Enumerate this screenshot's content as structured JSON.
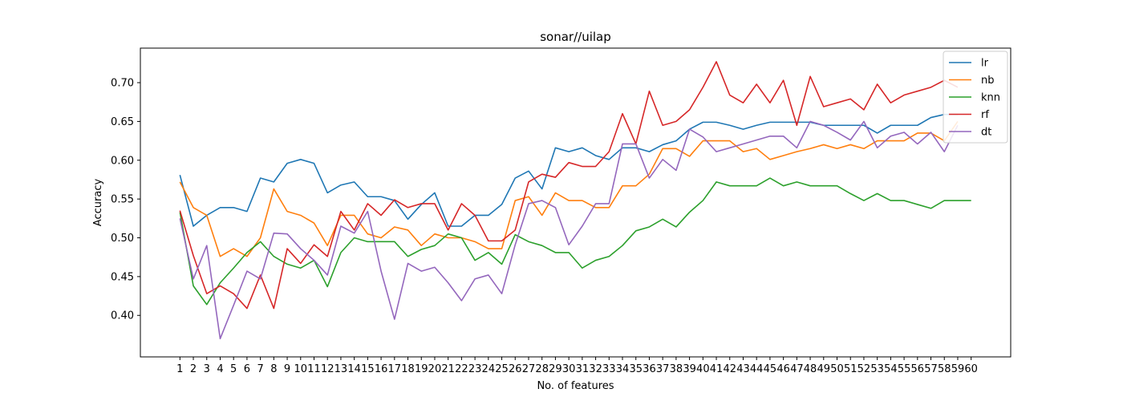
{
  "chart_data": {
    "type": "line",
    "title": "sonar//uilap",
    "xlabel": "No. of features",
    "ylabel": "Accuracy",
    "xlim": [
      -1.95,
      62.95
    ],
    "ylim": [
      0.3465,
      0.7445
    ],
    "yticks": [
      0.4,
      0.45,
      0.5,
      0.55,
      0.6,
      0.65,
      0.7
    ],
    "ytick_labels": [
      "0.40",
      "0.45",
      "0.50",
      "0.55",
      "0.60",
      "0.65",
      "0.70"
    ],
    "categories": [
      "1",
      "2",
      "3",
      "4",
      "5",
      "6",
      "7",
      "8",
      "9",
      "10",
      "11",
      "12",
      "13",
      "14",
      "15",
      "16",
      "17",
      "18",
      "19",
      "20",
      "21",
      "22",
      "23",
      "24",
      "25",
      "26",
      "27",
      "28",
      "29",
      "30",
      "31",
      "32",
      "33",
      "34",
      "35",
      "36",
      "37",
      "38",
      "39",
      "40",
      "41",
      "42",
      "43",
      "44",
      "45",
      "46",
      "47",
      "48",
      "49",
      "50",
      "51",
      "52",
      "53",
      "54",
      "55",
      "56",
      "57",
      "58",
      "59",
      "60"
    ],
    "legend_position": "top-right",
    "grid": false,
    "series": [
      {
        "name": "lr",
        "color": "#1f77b4",
        "values": [
          0.581,
          0.515,
          0.529,
          0.539,
          0.539,
          0.534,
          0.577,
          0.572,
          0.596,
          0.601,
          0.596,
          0.558,
          0.568,
          0.572,
          0.553,
          0.553,
          0.548,
          0.524,
          0.543,
          0.558,
          0.515,
          0.515,
          0.529,
          0.529,
          0.543,
          0.577,
          0.586,
          0.563,
          0.616,
          0.611,
          0.616,
          0.606,
          0.601,
          0.616,
          0.616,
          0.611,
          0.62,
          0.625,
          0.64,
          0.649,
          0.649,
          0.645,
          0.64,
          0.645,
          0.649,
          0.649,
          0.649,
          0.649,
          0.645,
          0.645,
          0.645,
          0.645,
          0.635,
          0.645,
          0.645,
          0.645,
          0.655,
          0.659,
          0.659,
          null
        ]
      },
      {
        "name": "nb",
        "color": "#ff7f0e",
        "values": [
          0.572,
          0.539,
          0.529,
          0.476,
          0.486,
          0.476,
          0.5,
          0.563,
          0.534,
          0.529,
          0.519,
          0.49,
          0.529,
          0.529,
          0.505,
          0.5,
          0.514,
          0.51,
          0.49,
          0.505,
          0.5,
          0.5,
          0.495,
          0.486,
          0.486,
          0.548,
          0.553,
          0.529,
          0.558,
          0.548,
          0.548,
          0.539,
          0.539,
          0.567,
          0.567,
          0.582,
          0.615,
          0.615,
          0.605,
          0.625,
          0.625,
          0.625,
          0.611,
          0.615,
          0.601,
          0.606,
          0.611,
          0.615,
          0.62,
          0.615,
          0.62,
          0.615,
          0.625,
          0.625,
          0.625,
          0.635,
          0.635,
          0.625,
          0.65,
          null
        ]
      },
      {
        "name": "knn",
        "color": "#2ca02c",
        "values": [
          0.533,
          0.438,
          0.414,
          0.442,
          0.461,
          0.481,
          0.495,
          0.476,
          0.466,
          0.461,
          0.471,
          0.437,
          0.481,
          0.5,
          0.495,
          0.495,
          0.495,
          0.476,
          0.485,
          0.49,
          0.505,
          0.5,
          0.471,
          0.481,
          0.466,
          0.504,
          0.495,
          0.49,
          0.481,
          0.481,
          0.461,
          0.471,
          0.476,
          0.49,
          0.509,
          0.514,
          0.524,
          0.514,
          0.533,
          0.548,
          0.572,
          0.567,
          0.567,
          0.567,
          0.577,
          0.567,
          0.572,
          0.567,
          0.567,
          0.567,
          0.557,
          0.548,
          0.557,
          0.548,
          0.548,
          0.543,
          0.538,
          0.548,
          0.548,
          0.548
        ]
      },
      {
        "name": "rf",
        "color": "#d62728",
        "values": [
          0.535,
          0.477,
          0.428,
          0.438,
          0.428,
          0.409,
          0.452,
          0.409,
          0.486,
          0.467,
          0.491,
          0.476,
          0.534,
          0.51,
          0.544,
          0.529,
          0.549,
          0.539,
          0.544,
          0.544,
          0.51,
          0.544,
          0.529,
          0.496,
          0.496,
          0.51,
          0.572,
          0.582,
          0.578,
          0.597,
          0.592,
          0.592,
          0.611,
          0.66,
          0.621,
          0.689,
          0.645,
          0.65,
          0.665,
          0.694,
          0.727,
          0.684,
          0.674,
          0.698,
          0.674,
          0.703,
          0.645,
          0.708,
          0.669,
          0.674,
          0.679,
          0.665,
          0.698,
          0.674,
          0.684,
          0.689,
          0.694,
          0.703,
          0.694,
          null
        ]
      },
      {
        "name": "dt",
        "color": "#9467bd",
        "values": [
          0.525,
          0.447,
          0.49,
          0.37,
          0.413,
          0.457,
          0.447,
          0.506,
          0.505,
          0.486,
          0.471,
          0.452,
          0.515,
          0.506,
          0.534,
          0.457,
          0.395,
          0.467,
          0.457,
          0.462,
          0.442,
          0.419,
          0.447,
          0.452,
          0.428,
          0.491,
          0.544,
          0.548,
          0.539,
          0.491,
          0.515,
          0.544,
          0.544,
          0.621,
          0.621,
          0.577,
          0.601,
          0.587,
          0.64,
          0.63,
          0.611,
          0.616,
          0.621,
          0.626,
          0.631,
          0.631,
          0.616,
          0.65,
          0.645,
          0.636,
          0.626,
          0.65,
          0.616,
          0.631,
          0.636,
          0.621,
          0.636,
          0.611,
          0.645,
          null
        ]
      }
    ]
  }
}
